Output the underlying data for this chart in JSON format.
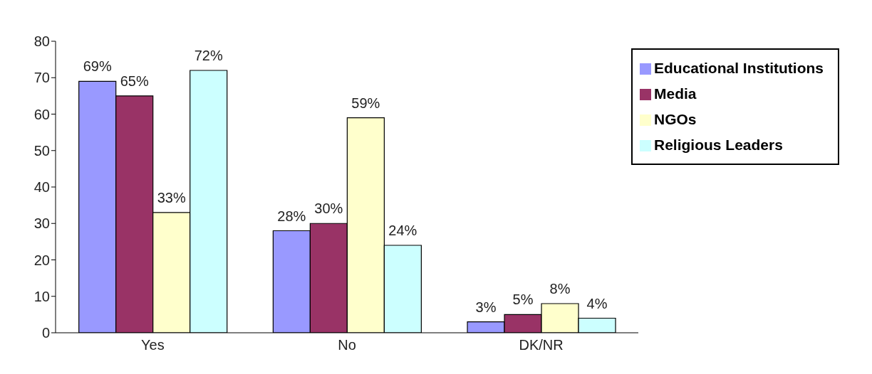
{
  "chart_data": {
    "type": "bar",
    "categories": [
      "Yes",
      "No",
      "DK/NR"
    ],
    "series": [
      {
        "name": "Educational Institutions",
        "color": "#9999ff",
        "values": [
          69,
          28,
          3
        ],
        "value_labels": [
          "69%",
          "28%",
          "3%"
        ]
      },
      {
        "name": "Media",
        "color": "#993366",
        "values": [
          65,
          30,
          5
        ],
        "value_labels": [
          "65%",
          "30%",
          "5%"
        ]
      },
      {
        "name": "NGOs",
        "color": "#ffffcc",
        "values": [
          33,
          59,
          8
        ],
        "value_labels": [
          "33%",
          "59%",
          "8%"
        ]
      },
      {
        "name": "Religious Leaders",
        "color": "#ccffff",
        "values": [
          72,
          24,
          4
        ],
        "value_labels": [
          "72%",
          "24%",
          "4%"
        ]
      }
    ],
    "ylim": [
      0,
      80
    ],
    "yticks": [
      0,
      10,
      20,
      30,
      40,
      50,
      60,
      70,
      80
    ],
    "grid": false,
    "legend": "top right"
  }
}
